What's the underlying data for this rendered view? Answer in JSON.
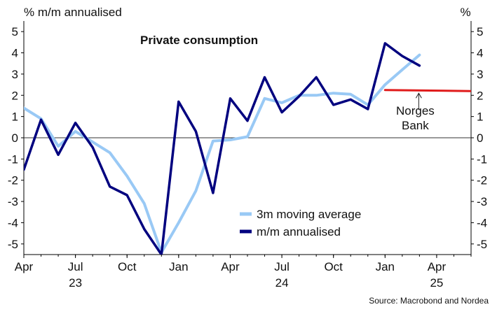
{
  "chart_data": {
    "type": "line",
    "title": "Private consumption",
    "left_axis_label": "% m/m annualised",
    "right_axis_label": "%",
    "source": "Source: Macrobond and Nordea",
    "ylim": [
      -5.5,
      5.5
    ],
    "y_ticks": [
      -5,
      -4,
      -3,
      -2,
      -1,
      0,
      1,
      2,
      3,
      4,
      5
    ],
    "x_start": "2023-04",
    "x_end": "2025-06",
    "x_ticks": [
      {
        "month": "2023-04",
        "label": "Apr",
        "year": ""
      },
      {
        "month": "2023-07",
        "label": "Jul",
        "year": "23"
      },
      {
        "month": "2023-10",
        "label": "Oct",
        "year": ""
      },
      {
        "month": "2024-01",
        "label": "Jan",
        "year": ""
      },
      {
        "month": "2024-04",
        "label": "Apr",
        "year": ""
      },
      {
        "month": "2024-07",
        "label": "Jul",
        "year": "24"
      },
      {
        "month": "2024-10",
        "label": "Oct",
        "year": ""
      },
      {
        "month": "2025-01",
        "label": "Jan",
        "year": ""
      },
      {
        "month": "2025-04",
        "label": "Apr",
        "year": "25"
      }
    ],
    "grid": false,
    "zero_line": true,
    "legend_position": "bottom-center",
    "series": [
      {
        "name": "3m moving average",
        "color": "#99c9f5",
        "points": [
          [
            "2023-04",
            1.4
          ],
          [
            "2023-05",
            0.9
          ],
          [
            "2023-06",
            -0.4
          ],
          [
            "2023-07",
            0.3
          ],
          [
            "2023-08",
            -0.2
          ],
          [
            "2023-09",
            -0.7
          ],
          [
            "2023-10",
            -1.8
          ],
          [
            "2023-11",
            -3.1
          ],
          [
            "2023-12",
            -5.4
          ],
          [
            "2024-01",
            -4.0
          ],
          [
            "2024-02",
            -2.5
          ],
          [
            "2024-03",
            -0.15
          ],
          [
            "2024-04",
            -0.1
          ],
          [
            "2024-05",
            0.05
          ],
          [
            "2024-06",
            1.85
          ],
          [
            "2024-07",
            1.65
          ],
          [
            "2024-08",
            2.0
          ],
          [
            "2024-09",
            2.0
          ],
          [
            "2024-10",
            2.1
          ],
          [
            "2024-11",
            2.05
          ],
          [
            "2024-12",
            1.55
          ],
          [
            "2025-01",
            2.5
          ],
          [
            "2025-02",
            3.2
          ],
          [
            "2025-03",
            3.9
          ]
        ]
      },
      {
        "name": "m/m annualised",
        "color": "#00007f",
        "points": [
          [
            "2023-04",
            -1.5
          ],
          [
            "2023-05",
            0.85
          ],
          [
            "2023-06",
            -0.8
          ],
          [
            "2023-07",
            0.7
          ],
          [
            "2023-08",
            -0.45
          ],
          [
            "2023-09",
            -2.3
          ],
          [
            "2023-10",
            -2.7
          ],
          [
            "2023-11",
            -4.3
          ],
          [
            "2023-12",
            -5.5
          ],
          [
            "2024-01",
            1.7
          ],
          [
            "2024-02",
            0.3
          ],
          [
            "2024-03",
            -2.6
          ],
          [
            "2024-04",
            1.85
          ],
          [
            "2024-05",
            0.8
          ],
          [
            "2024-06",
            2.85
          ],
          [
            "2024-07",
            1.2
          ],
          [
            "2024-08",
            1.95
          ],
          [
            "2024-09",
            2.85
          ],
          [
            "2024-10",
            1.55
          ],
          [
            "2024-11",
            1.8
          ],
          [
            "2024-12",
            1.35
          ],
          [
            "2025-01",
            4.45
          ],
          [
            "2025-02",
            3.85
          ],
          [
            "2025-03",
            3.4
          ]
        ]
      },
      {
        "name": "Norges Bank",
        "color": "#e01b1b",
        "points": [
          [
            "2025-01",
            2.25
          ],
          [
            "2025-06",
            2.2
          ]
        ]
      }
    ],
    "annotations": [
      {
        "text": [
          "Norges",
          "Bank"
        ],
        "points_to": [
          "2025-03",
          2.2
        ]
      }
    ]
  }
}
